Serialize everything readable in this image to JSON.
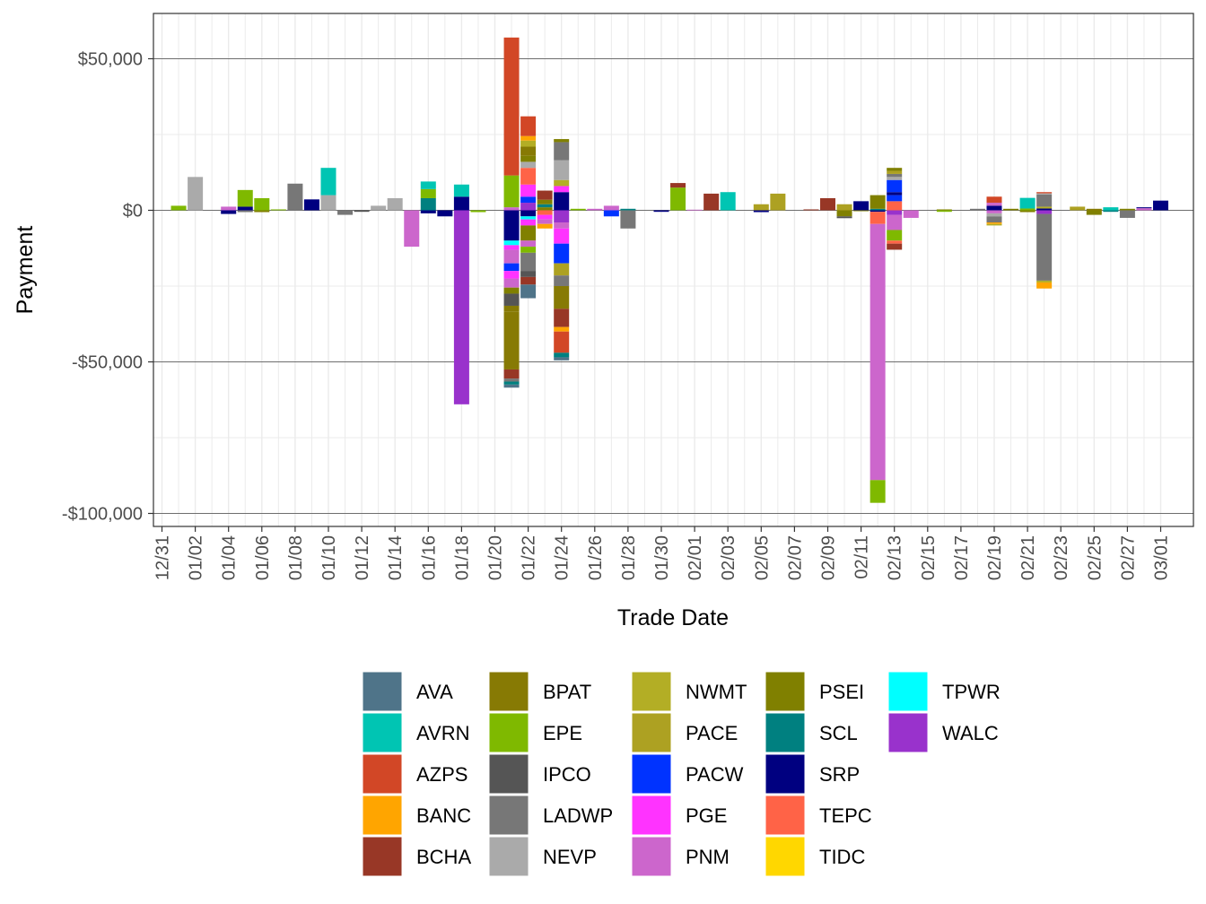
{
  "chart_data": {
    "type": "bar",
    "stacked": true,
    "xlabel": "Trade Date",
    "ylabel": "Payment",
    "ylim": [
      -104000,
      64000
    ],
    "y_ticks": [
      {
        "value": 50000,
        "label": "$50,000"
      },
      {
        "value": 0,
        "label": "$0"
      },
      {
        "value": -50000,
        "label": "-$50,000"
      },
      {
        "value": -100000,
        "label": "-$100,000"
      }
    ],
    "x_ticks": [
      "12/31",
      "01/02",
      "01/04",
      "01/06",
      "01/08",
      "01/10",
      "01/12",
      "01/14",
      "01/16",
      "01/18",
      "01/20",
      "01/22",
      "01/24",
      "01/26",
      "01/28",
      "01/30",
      "02/01",
      "02/03",
      "02/05",
      "02/07",
      "02/09",
      "02/11",
      "02/13",
      "02/15",
      "02/17",
      "02/19",
      "02/21",
      "02/23",
      "02/25",
      "02/27",
      "03/01"
    ],
    "grid": true,
    "legend_position": "bottom",
    "legend": [
      {
        "name": "AVA",
        "color": "#4F7489"
      },
      {
        "name": "AVRN",
        "color": "#00C5B3"
      },
      {
        "name": "AZPS",
        "color": "#D24726"
      },
      {
        "name": "BANC",
        "color": "#FFA500"
      },
      {
        "name": "BCHA",
        "color": "#983726"
      },
      {
        "name": "BPAT",
        "color": "#877A04"
      },
      {
        "name": "EPE",
        "color": "#7FB900"
      },
      {
        "name": "IPCO",
        "color": "#555555"
      },
      {
        "name": "LADWP",
        "color": "#777777"
      },
      {
        "name": "NEVP",
        "color": "#AAAAAA"
      },
      {
        "name": "NWMT",
        "color": "#B3AE25"
      },
      {
        "name": "PACE",
        "color": "#ADA122"
      },
      {
        "name": "PACW",
        "color": "#0033FF"
      },
      {
        "name": "PGE",
        "color": "#FF33FF"
      },
      {
        "name": "PNM",
        "color": "#CC66CC"
      },
      {
        "name": "PSEI",
        "color": "#808000"
      },
      {
        "name": "SCL",
        "color": "#008080"
      },
      {
        "name": "SRP",
        "color": "#000080"
      },
      {
        "name": "TEPC",
        "color": "#FF6347"
      },
      {
        "name": "TIDC",
        "color": "#FFD700"
      },
      {
        "name": "TPWR",
        "color": "#00FFFF"
      },
      {
        "name": "WALC",
        "color": "#9932CC"
      }
    ],
    "bars": [
      {
        "day": 1,
        "segments": [
          {
            "s": "EPE",
            "v": 1500
          }
        ]
      },
      {
        "day": 2,
        "segments": [
          {
            "s": "NEVP",
            "v": 11000
          }
        ]
      },
      {
        "day": 4,
        "segments": [
          {
            "s": "PNM",
            "v": 1200
          },
          {
            "s": "SRP",
            "v": -1200
          }
        ]
      },
      {
        "day": 5,
        "segments": [
          {
            "s": "SRP",
            "v": 1200
          },
          {
            "s": "EPE",
            "v": 5500
          },
          {
            "s": "LADWP",
            "v": -600
          }
        ]
      },
      {
        "day": 6,
        "segments": [
          {
            "s": "EPE",
            "v": 4000
          },
          {
            "s": "PSEI",
            "v": -600
          }
        ]
      },
      {
        "day": 7,
        "segments": [
          {
            "s": "EPE",
            "v": 300
          }
        ]
      },
      {
        "day": 8,
        "segments": [
          {
            "s": "LADWP",
            "v": 8800
          }
        ]
      },
      {
        "day": 9,
        "segments": [
          {
            "s": "SRP",
            "v": 3600
          }
        ]
      },
      {
        "day": 10,
        "segments": [
          {
            "s": "NEVP",
            "v": 5000
          },
          {
            "s": "AVRN",
            "v": 9000
          }
        ]
      },
      {
        "day": 11,
        "segments": [
          {
            "s": "LADWP",
            "v": -1500
          }
        ]
      },
      {
        "day": 12,
        "segments": [
          {
            "s": "IPCO",
            "v": -500
          }
        ]
      },
      {
        "day": 13,
        "segments": [
          {
            "s": "NEVP",
            "v": 1500
          }
        ]
      },
      {
        "day": 14,
        "segments": [
          {
            "s": "NEVP",
            "v": 4000
          }
        ]
      },
      {
        "day": 15,
        "segments": [
          {
            "s": "PNM",
            "v": -12000
          }
        ]
      },
      {
        "day": 16,
        "segments": [
          {
            "s": "SCL",
            "v": 4000
          },
          {
            "s": "EPE",
            "v": 3000
          },
          {
            "s": "AVRN",
            "v": 2500
          },
          {
            "s": "SRP",
            "v": -1000
          }
        ]
      },
      {
        "day": 17,
        "segments": [
          {
            "s": "SRP",
            "v": -2000
          }
        ]
      },
      {
        "day": 18,
        "segments": [
          {
            "s": "SRP",
            "v": 4500
          },
          {
            "s": "AVRN",
            "v": 4000
          },
          {
            "s": "WALC",
            "v": -64000
          }
        ]
      },
      {
        "day": 19,
        "segments": [
          {
            "s": "EPE",
            "v": -600
          }
        ]
      },
      {
        "day": 21,
        "segments": [
          {
            "s": "PNM",
            "v": 1000
          },
          {
            "s": "EPE",
            "v": 10500
          },
          {
            "s": "AZPS",
            "v": 45500
          },
          {
            "s": "SRP",
            "v": -10000
          },
          {
            "s": "TPWR",
            "v": -1500
          },
          {
            "s": "PGE",
            "v": -1500
          },
          {
            "s": "PNM",
            "v": -4500
          },
          {
            "s": "PACW",
            "v": -2500
          },
          {
            "s": "PGE",
            "v": -2500
          },
          {
            "s": "PNM",
            "v": -3000
          },
          {
            "s": "PSEI",
            "v": -2000
          },
          {
            "s": "IPCO",
            "v": -4000
          },
          {
            "s": "BPAT",
            "v": -2000
          },
          {
            "s": "BPAT",
            "v": -19000
          },
          {
            "s": "BCHA",
            "v": -3000
          },
          {
            "s": "LADWP",
            "v": -1000
          },
          {
            "s": "SCL",
            "v": -1000
          },
          {
            "s": "AVA",
            "v": -1000
          }
        ]
      },
      {
        "day": 22,
        "segments": [
          {
            "s": "WALC",
            "v": 2500
          },
          {
            "s": "PACW",
            "v": 2000
          },
          {
            "s": "PGE",
            "v": 4000
          },
          {
            "s": "TEPC",
            "v": 5500
          },
          {
            "s": "NEVP",
            "v": 2000
          },
          {
            "s": "PSEI",
            "v": 2000
          },
          {
            "s": "BPAT",
            "v": 3000
          },
          {
            "s": "NWMT",
            "v": 2000
          },
          {
            "s": "BANC",
            "v": 1500
          },
          {
            "s": "AZPS",
            "v": 6500
          },
          {
            "s": "SRP",
            "v": -2000
          },
          {
            "s": "TPWR",
            "v": -1000
          },
          {
            "s": "PGE",
            "v": -2000
          },
          {
            "s": "PSEI",
            "v": -5000
          },
          {
            "s": "PNM",
            "v": -2000
          },
          {
            "s": "EPE",
            "v": -2000
          },
          {
            "s": "LADWP",
            "v": -6000
          },
          {
            "s": "IPCO",
            "v": -2000
          },
          {
            "s": "BCHA",
            "v": -2500
          },
          {
            "s": "AVA",
            "v": -4500
          }
        ]
      },
      {
        "day": 23,
        "segments": [
          {
            "s": "PSEI",
            "v": 1000
          },
          {
            "s": "SCL",
            "v": 1000
          },
          {
            "s": "PSEI",
            "v": 1500
          },
          {
            "s": "BCHA",
            "v": 3000
          },
          {
            "s": "TEPC",
            "v": -1500
          },
          {
            "s": "PGE",
            "v": -1500
          },
          {
            "s": "PNM",
            "v": -1500
          },
          {
            "s": "BANC",
            "v": -1500
          }
        ]
      },
      {
        "day": 24,
        "segments": [
          {
            "s": "SRP",
            "v": 6000
          },
          {
            "s": "PGE",
            "v": 2000
          },
          {
            "s": "NWMT",
            "v": 2000
          },
          {
            "s": "NEVP",
            "v": 6500
          },
          {
            "s": "LADWP",
            "v": 6000
          },
          {
            "s": "PSEI",
            "v": 1000
          },
          {
            "s": "WALC",
            "v": -4000
          },
          {
            "s": "PNM",
            "v": -2000
          },
          {
            "s": "PGE",
            "v": -5000
          },
          {
            "s": "PACW",
            "v": -6500
          },
          {
            "s": "PACE",
            "v": -4000
          },
          {
            "s": "LADWP",
            "v": -3500
          },
          {
            "s": "BPAT",
            "v": -7500
          },
          {
            "s": "BCHA",
            "v": -6000
          },
          {
            "s": "BANC",
            "v": -1500
          },
          {
            "s": "AZPS",
            "v": -7000
          },
          {
            "s": "SCL",
            "v": -1500
          },
          {
            "s": "AVA",
            "v": -1000
          }
        ]
      },
      {
        "day": 25,
        "segments": [
          {
            "s": "EPE",
            "v": 500
          }
        ]
      },
      {
        "day": 26,
        "segments": [
          {
            "s": "PNM",
            "v": 500
          }
        ]
      },
      {
        "day": 27,
        "segments": [
          {
            "s": "PNM",
            "v": 1500
          },
          {
            "s": "PACW",
            "v": -2000
          }
        ]
      },
      {
        "day": 28,
        "segments": [
          {
            "s": "SCL",
            "v": 500
          },
          {
            "s": "LADWP",
            "v": -6000
          }
        ]
      },
      {
        "day": 30,
        "segments": [
          {
            "s": "SRP",
            "v": -500
          }
        ]
      },
      {
        "day": 31,
        "segments": [
          {
            "s": "EPE",
            "v": 7500
          },
          {
            "s": "BCHA",
            "v": 1500
          }
        ]
      },
      {
        "day": 32,
        "segments": [
          {
            "s": "PNM",
            "v": 200
          }
        ]
      },
      {
        "day": 33,
        "segments": [
          {
            "s": "BCHA",
            "v": 5500
          }
        ]
      },
      {
        "day": 34,
        "segments": [
          {
            "s": "AVRN",
            "v": 6000
          }
        ]
      },
      {
        "day": 36,
        "segments": [
          {
            "s": "PACE",
            "v": 2000
          },
          {
            "s": "SRP",
            "v": -600
          }
        ]
      },
      {
        "day": 37,
        "segments": [
          {
            "s": "PACE",
            "v": 5500
          }
        ]
      },
      {
        "day": 39,
        "segments": [
          {
            "s": "BCHA",
            "v": 300
          }
        ]
      },
      {
        "day": 40,
        "segments": [
          {
            "s": "BCHA",
            "v": 4000
          }
        ]
      },
      {
        "day": 41,
        "segments": [
          {
            "s": "PACE",
            "v": 2000
          },
          {
            "s": "PSEI",
            "v": -2000
          },
          {
            "s": "IPCO",
            "v": -600
          }
        ]
      },
      {
        "day": 42,
        "segments": [
          {
            "s": "SRP",
            "v": 3000
          },
          {
            "s": "PSEI",
            "v": -300
          }
        ]
      },
      {
        "day": 43,
        "segments": [
          {
            "s": "SCL",
            "v": 500
          },
          {
            "s": "PSEI",
            "v": 4500
          },
          {
            "s": "SRP",
            "v": -500
          },
          {
            "s": "TEPC",
            "v": -4000
          },
          {
            "s": "PNM",
            "v": -84500
          },
          {
            "s": "EPE",
            "v": -7500
          }
        ]
      },
      {
        "day": 44,
        "segments": [
          {
            "s": "TEPC",
            "v": 3000
          },
          {
            "s": "PACW",
            "v": 2000
          },
          {
            "s": "SRP",
            "v": 1000
          },
          {
            "s": "PACW",
            "v": 4000
          },
          {
            "s": "NEVP",
            "v": 1000
          },
          {
            "s": "LADWP",
            "v": 1000
          },
          {
            "s": "PACE",
            "v": 1000
          },
          {
            "s": "PSEI",
            "v": 1000
          },
          {
            "s": "WALC",
            "v": -1500
          },
          {
            "s": "PNM",
            "v": -5000
          },
          {
            "s": "EPE",
            "v": -3500
          },
          {
            "s": "TEPC",
            "v": -1000
          },
          {
            "s": "BCHA",
            "v": -2000
          }
        ]
      },
      {
        "day": 45,
        "segments": [
          {
            "s": "PNM",
            "v": -2500
          }
        ]
      },
      {
        "day": 47,
        "segments": [
          {
            "s": "PSEI",
            "v": 300
          },
          {
            "s": "EPE",
            "v": -500
          }
        ]
      },
      {
        "day": 49,
        "segments": [
          {
            "s": "LADWP",
            "v": 500
          }
        ]
      },
      {
        "day": 50,
        "segments": [
          {
            "s": "SRP",
            "v": 1500
          },
          {
            "s": "PNM",
            "v": 1000
          },
          {
            "s": "AZPS",
            "v": 2000
          },
          {
            "s": "PNM",
            "v": -1000
          },
          {
            "s": "NEVP",
            "v": -1000
          },
          {
            "s": "LADWP",
            "v": -2000
          },
          {
            "s": "BANC",
            "v": -500
          },
          {
            "s": "NWMT",
            "v": -500
          }
        ]
      },
      {
        "day": 51,
        "segments": [
          {
            "s": "PSEI",
            "v": 500
          }
        ]
      },
      {
        "day": 52,
        "segments": [
          {
            "s": "EPE",
            "v": 600
          },
          {
            "s": "AVRN",
            "v": 3500
          },
          {
            "s": "PSEI",
            "v": -600
          }
        ]
      },
      {
        "day": 53,
        "segments": [
          {
            "s": "SRP",
            "v": 600
          },
          {
            "s": "NWMT",
            "v": 600
          },
          {
            "s": "LADWP",
            "v": 4000
          },
          {
            "s": "NEVP",
            "v": 400
          },
          {
            "s": "AZPS",
            "v": 400
          },
          {
            "s": "WALC",
            "v": -1200
          },
          {
            "s": "LADWP",
            "v": -22000
          },
          {
            "s": "NWMT",
            "v": -600
          },
          {
            "s": "BANC",
            "v": -2000
          }
        ]
      },
      {
        "day": 55,
        "segments": [
          {
            "s": "PACE",
            "v": 1200
          }
        ]
      },
      {
        "day": 56,
        "segments": [
          {
            "s": "BPAT",
            "v": 500
          },
          {
            "s": "PSEI",
            "v": -1500
          }
        ]
      },
      {
        "day": 57,
        "segments": [
          {
            "s": "AVRN",
            "v": 1000
          },
          {
            "s": "SCL",
            "v": -500
          }
        ]
      },
      {
        "day": 58,
        "segments": [
          {
            "s": "PSEI",
            "v": 500
          },
          {
            "s": "LADWP",
            "v": -2500
          }
        ]
      },
      {
        "day": 59,
        "segments": [
          {
            "s": "PNM",
            "v": 700
          },
          {
            "s": "SRP",
            "v": 300
          }
        ]
      },
      {
        "day": 60,
        "segments": [
          {
            "s": "SRP",
            "v": 3200
          }
        ]
      }
    ]
  }
}
